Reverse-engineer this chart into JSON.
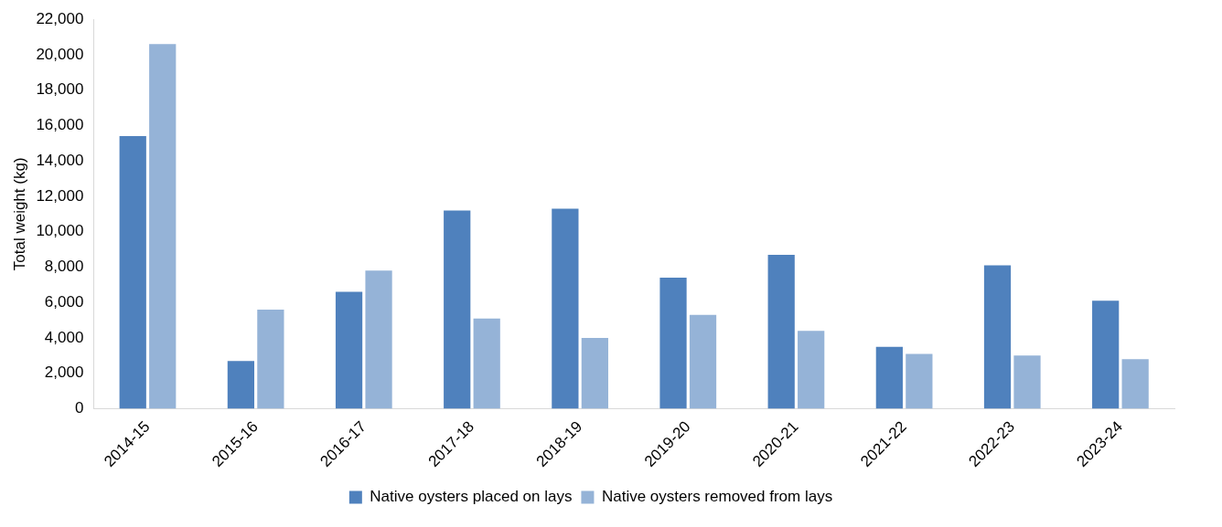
{
  "chart_data": {
    "type": "bar",
    "ylabel": "Total weight (kg)",
    "categories": [
      "2014-15",
      "2015-16",
      "2016-17",
      "2017-18",
      "2018-19",
      "2019-20",
      "2020-21",
      "2021-22",
      "2022-23",
      "2023-24"
    ],
    "series": [
      {
        "name": "Native oysters placed on lays",
        "color": "#4f81bd",
        "values": [
          15400,
          2700,
          6600,
          11200,
          11300,
          7400,
          8700,
          3500,
          8100,
          6100
        ]
      },
      {
        "name": "Native oysters removed from lays",
        "color": "#95b3d7",
        "values": [
          20600,
          5600,
          7800,
          5100,
          4000,
          5300,
          4400,
          3100,
          3000,
          2800
        ]
      }
    ],
    "ylim": [
      0,
      22000
    ],
    "yticks": [
      0,
      {
        "value": 2000,
        "label": "2,000"
      },
      {
        "value": 4000,
        "label": "4,000"
      },
      {
        "value": 6000,
        "label": "6,000"
      },
      {
        "value": 8000,
        "label": "8,000"
      },
      {
        "value": 10000,
        "label": "10,000"
      },
      {
        "value": 12000,
        "label": "12,000"
      },
      {
        "value": 14000,
        "label": "14,000"
      },
      {
        "value": 16000,
        "label": "16,000"
      },
      {
        "value": 18000,
        "label": "18,000"
      },
      {
        "value": 20000,
        "label": "20,000"
      },
      {
        "value": 22000,
        "label": "22,000"
      }
    ],
    "grid": false,
    "legend": "bottom"
  }
}
